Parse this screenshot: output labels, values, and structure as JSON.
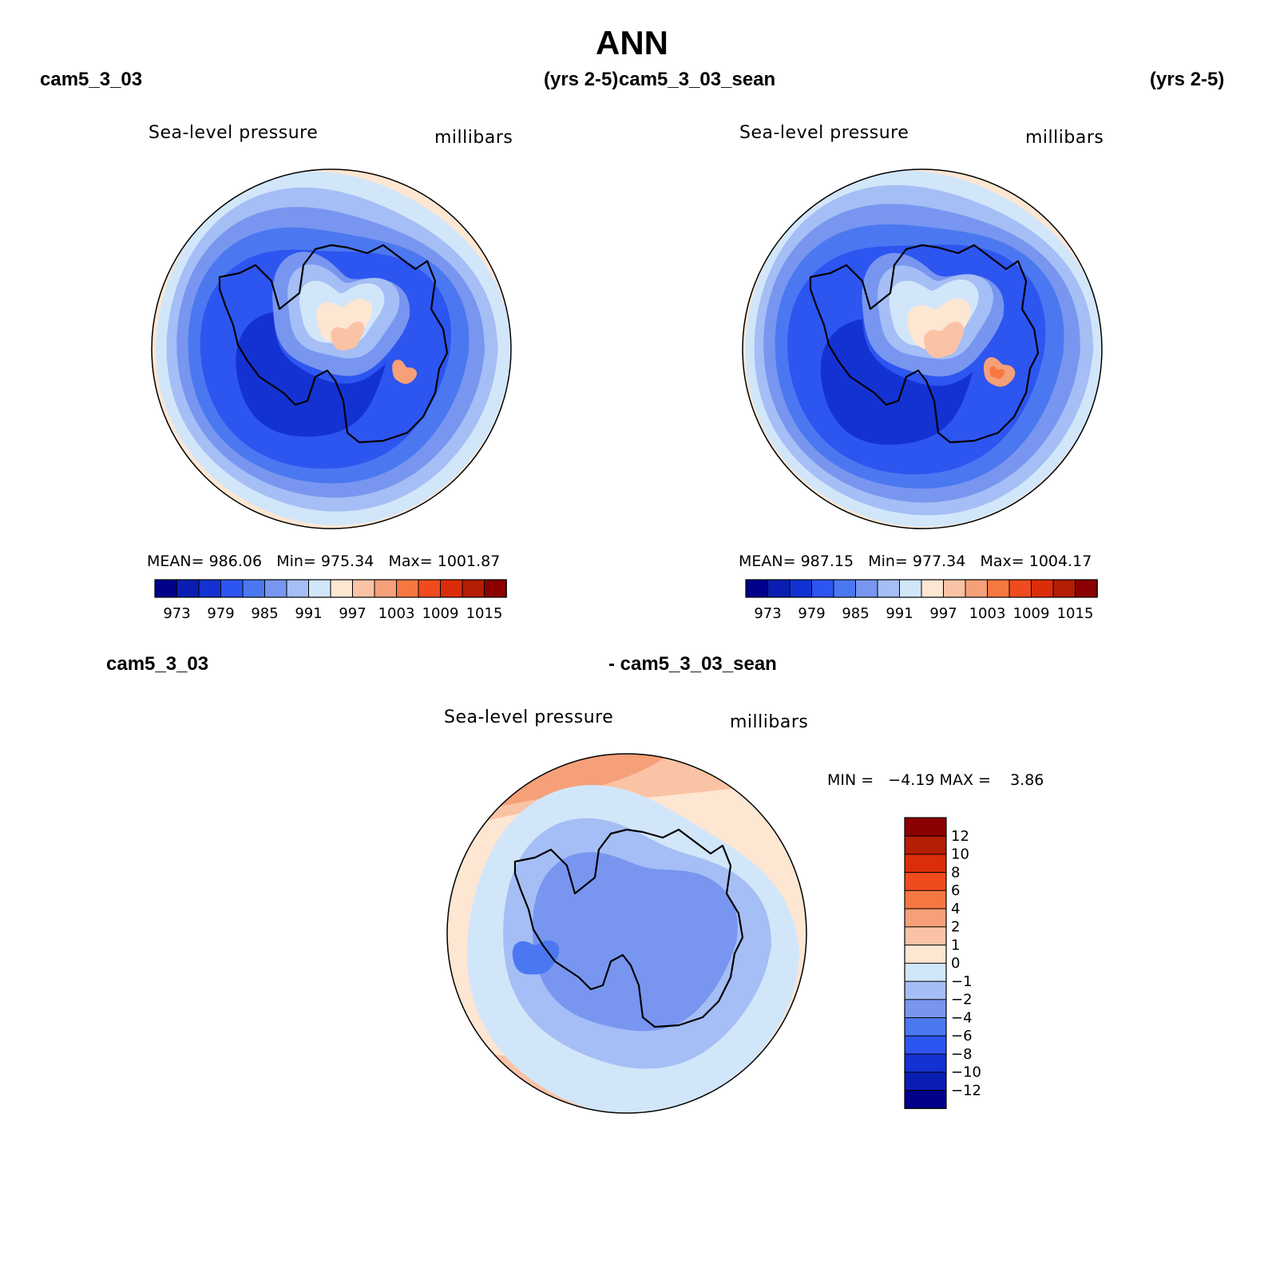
{
  "title": "ANN",
  "headers": {
    "top_left_case": "cam5_3_03",
    "top_left_years": "(yrs 2-5)",
    "top_right_case": "cam5_3_03_sean",
    "top_right_years": "(yrs 2-5)",
    "bottom_left_case": "cam5_3_03",
    "bottom_right_case": "- cam5_3_03_sean"
  },
  "palettes": {
    "abs": [
      "#00008b",
      "#0a1eb4",
      "#1432d2",
      "#2d55f0",
      "#4b78f0",
      "#7896f0",
      "#a5bef5",
      "#d2e6fa",
      "#fde6d2",
      "#fac3a5",
      "#f5a078",
      "#f57841",
      "#f04b1e",
      "#dc2d0a",
      "#b41e05",
      "#8b0000"
    ],
    "diff": [
      "#00008b",
      "#0a1eb4",
      "#1432d2",
      "#2d55f0",
      "#4b78f0",
      "#7896f0",
      "#a5bef5",
      "#d2e6fa",
      "#fde6d2",
      "#fac3a5",
      "#f5a078",
      "#f57841",
      "#f04b1e",
      "#dc2d0a",
      "#b41e05",
      "#8b0000"
    ]
  },
  "chart_data": [
    {
      "type": "heatmap",
      "projection": "south-polar-stereographic",
      "title": "Sea-level pressure",
      "units": "millibars",
      "stats": {
        "mean": "986.06",
        "min": "975.34",
        "max": "1001.87"
      },
      "stats_labels": {
        "mean": "MEAN=",
        "min": "Min=",
        "max": "Max="
      },
      "contour_levels": [
        973,
        976,
        979,
        982,
        985,
        988,
        991,
        994,
        997,
        1000,
        1003,
        1006,
        1009,
        1012,
        1015
      ],
      "colorbar_tick_labels": [
        "973",
        "979",
        "985",
        "991",
        "997",
        "1003",
        "1009",
        "1015"
      ]
    },
    {
      "type": "heatmap",
      "projection": "south-polar-stereographic",
      "title": "Sea-level pressure",
      "units": "millibars",
      "stats": {
        "mean": "987.15",
        "min": "977.34",
        "max": "1004.17"
      },
      "stats_labels": {
        "mean": "MEAN=",
        "min": "Min=",
        "max": "Max="
      },
      "contour_levels": [
        973,
        976,
        979,
        982,
        985,
        988,
        991,
        994,
        997,
        1000,
        1003,
        1006,
        1009,
        1012,
        1015
      ],
      "colorbar_tick_labels": [
        "973",
        "979",
        "985",
        "991",
        "997",
        "1003",
        "1009",
        "1015"
      ]
    },
    {
      "type": "heatmap",
      "projection": "south-polar-stereographic",
      "title": "Sea-level pressure",
      "units": "millibars",
      "stats_text": "MIN =   −4.19 MAX =    3.86",
      "stats": {
        "min": -4.19,
        "max": 3.86
      },
      "contour_levels": [
        -12,
        -10,
        -8,
        -6,
        -4,
        -2,
        -1,
        0,
        1,
        2,
        4,
        6,
        8,
        10,
        12
      ],
      "colorbar_tick_labels": [
        "12",
        "10",
        "8",
        "6",
        "4",
        "2",
        "1",
        "0",
        "−1",
        "−2",
        "−4",
        "−6",
        "−8",
        "−10",
        "−12"
      ]
    }
  ]
}
